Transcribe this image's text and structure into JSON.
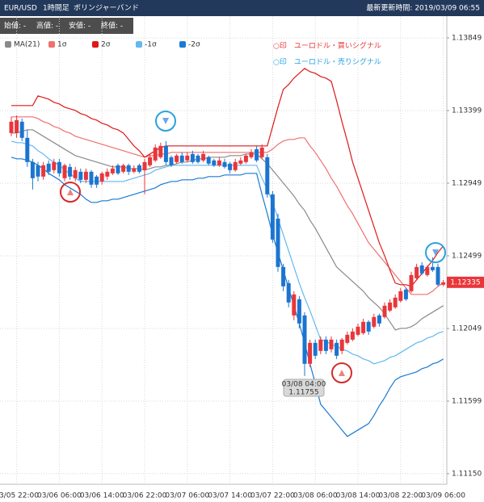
{
  "header": {
    "pair": "EUR/USD",
    "timeframe": "1時間足",
    "indicator": "ボリンジャーバンド",
    "updated": "最新更新時間: 2019/03/09 06:55"
  },
  "ohlc_labels": [
    "始値: -",
    "高値: -",
    "安値: -",
    "終値: -"
  ],
  "chart_data": {
    "type": "candlestick",
    "categories": [
      null,
      "03/05 22:00",
      null,
      null,
      null,
      null,
      null,
      null,
      null,
      "03/06 06:00",
      null,
      null,
      null,
      null,
      null,
      null,
      null,
      "03/06 14:00",
      null,
      null,
      null,
      null,
      null,
      null,
      null,
      "03/06 22:00",
      null,
      null,
      null,
      null,
      null,
      null,
      null,
      "03/07 06:00",
      null,
      null,
      null,
      null,
      null,
      null,
      null,
      "03/07 14:00",
      null,
      null,
      null,
      null,
      null,
      null,
      null,
      "03/07 22:00",
      null,
      null,
      null,
      null,
      null,
      null,
      null,
      "03/08 06:00",
      null,
      null,
      null,
      null,
      null,
      null,
      null,
      "03/08 14:00",
      null,
      null,
      null,
      null,
      null,
      null,
      null,
      "03/08 22:00",
      null,
      null,
      null,
      null,
      null,
      null,
      null,
      "03/09 06:00"
    ],
    "open": [
      1.1326,
      1.1326,
      1.1333,
      1.1323,
      1.1308,
      1.1306,
      1.1299,
      1.1307,
      1.1303,
      1.1308,
      1.1298,
      1.1305,
      1.1298,
      1.1302,
      1.1297,
      1.1302,
      1.1299,
      1.1296,
      1.1299,
      1.1301,
      1.1306,
      1.1302,
      1.1306,
      1.1302,
      1.1306,
      1.1303,
      1.1306,
      1.1309,
      1.1311,
      1.1318,
      1.1311,
      1.1308,
      1.1312,
      1.1309,
      1.1313,
      1.1312,
      1.1309,
      1.1311,
      1.1309,
      1.1306,
      1.1308,
      1.1307,
      1.1303,
      1.1307,
      1.1308,
      1.1311,
      1.1316,
      1.1311,
      1.1311,
      1.1288,
      1.1273,
      1.1243,
      1.1233,
      1.1213,
      1.1223,
      1.1213,
      1.1183,
      1.1196,
      1.1191,
      1.1198,
      1.1192,
      1.1196,
      1.1191,
      1.1196,
      1.1198,
      1.1201,
      1.1202,
      1.1209,
      1.1206,
      1.1213,
      1.1212,
      1.1216,
      1.1218,
      1.1222,
      1.1229,
      1.1228,
      1.1236,
      1.1244,
      1.1238,
      1.1243,
      1.1243,
      1.1232
    ],
    "high": [
      1.1336,
      1.1337,
      1.1335,
      1.1328,
      1.131,
      1.1308,
      1.1308,
      1.1309,
      1.131,
      1.131,
      1.1307,
      1.1307,
      1.1305,
      1.1304,
      1.1304,
      1.1303,
      1.13,
      1.1302,
      1.1304,
      1.1306,
      1.1307,
      1.1307,
      1.1307,
      1.1306,
      1.1307,
      1.131,
      1.1313,
      1.1319,
      1.132,
      1.1321,
      1.1312,
      1.1313,
      1.1314,
      1.1314,
      1.1315,
      1.1313,
      1.1315,
      1.1312,
      1.131,
      1.1311,
      1.131,
      1.1308,
      1.131,
      1.1311,
      1.1313,
      1.1316,
      1.1318,
      1.1319,
      1.1313,
      1.129,
      1.1276,
      1.1245,
      1.1235,
      1.1228,
      1.1225,
      1.1215,
      1.1198,
      1.1198,
      1.12,
      1.12,
      1.12,
      1.1198,
      1.1199,
      1.1203,
      1.1205,
      1.1208,
      1.1211,
      1.121,
      1.1214,
      1.1214,
      1.1221,
      1.1223,
      1.1226,
      1.123,
      1.123,
      1.124,
      1.1245,
      1.1246,
      1.1244,
      1.1249,
      1.1245,
      1.1235
    ],
    "low": [
      1.1324,
      1.1323,
      1.1321,
      1.1305,
      1.1291,
      1.1296,
      1.1297,
      1.13,
      1.1301,
      1.1299,
      1.1296,
      1.1297,
      1.1296,
      1.1295,
      1.1295,
      1.1292,
      1.1292,
      1.1294,
      1.1297,
      1.13,
      1.13,
      1.1301,
      1.13,
      1.1301,
      1.1301,
      1.1288,
      1.1305,
      1.1308,
      1.131,
      1.1306,
      1.1305,
      1.1307,
      1.1307,
      1.1308,
      1.1307,
      1.1307,
      1.1308,
      1.1306,
      1.1305,
      1.1305,
      1.1304,
      1.1301,
      1.1302,
      1.1306,
      1.1307,
      1.131,
      1.1308,
      1.131,
      1.1286,
      1.1258,
      1.124,
      1.1228,
      1.1218,
      1.121,
      1.1205,
      1.11755,
      1.1181,
      1.1186,
      1.1189,
      1.1189,
      1.119,
      1.1186,
      1.1189,
      1.1195,
      1.1197,
      1.12,
      1.1201,
      1.1201,
      1.1205,
      1.1206,
      1.1211,
      1.1215,
      1.1217,
      1.1221,
      1.1222,
      1.1227,
      1.1235,
      1.1238,
      1.1237,
      1.124,
      1.1231,
      1.1231
    ],
    "close": [
      1.1333,
      1.1334,
      1.1323,
      1.1308,
      1.1298,
      1.1299,
      1.1306,
      1.1302,
      1.1308,
      1.1301,
      1.1306,
      1.1299,
      1.1303,
      1.1297,
      1.1302,
      1.1294,
      1.1294,
      1.1301,
      1.1302,
      1.1304,
      1.1301,
      1.1306,
      1.1302,
      1.1304,
      1.1302,
      1.1308,
      1.1311,
      1.1317,
      1.1318,
      1.1308,
      1.1306,
      1.1312,
      1.1308,
      1.1312,
      1.1308,
      1.1308,
      1.1313,
      1.1307,
      1.1306,
      1.1309,
      1.1305,
      1.1303,
      1.1308,
      1.1309,
      1.1312,
      1.1314,
      1.1309,
      1.1317,
      1.1288,
      1.126,
      1.1243,
      1.1231,
      1.1221,
      1.1226,
      1.1208,
      1.1183,
      1.1196,
      1.1188,
      1.1198,
      1.1191,
      1.1198,
      1.1188,
      1.1198,
      1.1201,
      1.1203,
      1.1206,
      1.1209,
      1.1203,
      1.1212,
      1.1208,
      1.1219,
      1.1221,
      1.1224,
      1.1228,
      1.1223,
      1.1238,
      1.1243,
      1.1239,
      1.1243,
      1.1241,
      1.1232,
      1.12335
    ],
    "up_color": "#e8363a",
    "down_color": "#1b75d0",
    "series": [
      {
        "name": "MA(21)",
        "color": "#8a8a8a",
        "values": [
          1.1326,
          1.1326,
          1.1327,
          1.1328,
          1.1328,
          1.1326,
          1.1324,
          1.1322,
          1.132,
          1.1318,
          1.1316,
          1.1314,
          1.1312,
          1.1311,
          1.131,
          1.1309,
          1.1308,
          1.1307,
          1.1306,
          1.1305,
          1.1305,
          1.1305,
          1.1304,
          1.1304,
          1.1304,
          1.1303,
          1.1304,
          1.1305,
          1.1305,
          1.1306,
          1.1306,
          1.1307,
          1.1308,
          1.1308,
          1.1309,
          1.131,
          1.131,
          1.1311,
          1.1311,
          1.1311,
          1.1311,
          1.1312,
          1.1312,
          1.1312,
          1.1313,
          1.1313,
          1.1313,
          1.131,
          1.1307,
          1.1303,
          1.1299,
          1.1295,
          1.1291,
          1.1287,
          1.1282,
          1.1278,
          1.1272,
          1.1267,
          1.1261,
          1.1255,
          1.1249,
          1.1243,
          1.124,
          1.1237,
          1.1234,
          1.1231,
          1.1228,
          1.1224,
          1.1221,
          1.1218,
          1.1214,
          1.1209,
          1.1204,
          1.1205,
          1.1205,
          1.1206,
          1.1208,
          1.1211,
          1.1213,
          1.1215,
          1.1217,
          1.1219
        ]
      },
      {
        "name": "1σ",
        "color": "#f07070",
        "values": [
          1.1336,
          1.1336,
          1.1336,
          1.1336,
          1.1336,
          1.1335,
          1.1333,
          1.1332,
          1.133,
          1.1329,
          1.1327,
          1.1326,
          1.1324,
          1.1323,
          1.1322,
          1.1321,
          1.132,
          1.1319,
          1.1318,
          1.1317,
          1.1316,
          1.1315,
          1.1314,
          1.1313,
          1.1312,
          1.1311,
          1.1312,
          1.1312,
          1.1313,
          1.1313,
          1.1314,
          1.1314,
          1.1314,
          1.1314,
          1.1314,
          1.1314,
          1.1314,
          1.1314,
          1.1314,
          1.1314,
          1.1314,
          1.1314,
          1.1314,
          1.1314,
          1.1314,
          1.1314,
          1.1314,
          1.1314,
          1.1314,
          1.1316,
          1.1319,
          1.1321,
          1.1322,
          1.1322,
          1.1323,
          1.1323,
          1.1318,
          1.1314,
          1.1309,
          1.1304,
          1.1298,
          1.1293,
          1.1287,
          1.1281,
          1.1276,
          1.127,
          1.1264,
          1.1258,
          1.1254,
          1.125,
          1.1246,
          1.1242,
          1.1238,
          1.1234,
          1.123,
          1.1226,
          1.1226,
          1.1226,
          1.1226,
          1.1228,
          1.1231,
          1.1233
        ]
      },
      {
        "name": "2σ",
        "color": "#e01818",
        "values": [
          1.1343,
          1.1343,
          1.1343,
          1.1343,
          1.1343,
          1.1349,
          1.1348,
          1.1347,
          1.1345,
          1.1344,
          1.1342,
          1.1341,
          1.134,
          1.1338,
          1.1337,
          1.1335,
          1.1334,
          1.1332,
          1.1331,
          1.1329,
          1.1328,
          1.1326,
          1.1322,
          1.1318,
          1.1315,
          1.1311,
          1.1313,
          1.1315,
          1.1317,
          1.1318,
          1.1318,
          1.1318,
          1.1318,
          1.1318,
          1.1318,
          1.1318,
          1.1318,
          1.1318,
          1.1318,
          1.1318,
          1.1318,
          1.1318,
          1.1318,
          1.1318,
          1.1318,
          1.1318,
          1.1318,
          1.1318,
          1.1318,
          1.133,
          1.1342,
          1.1353,
          1.1356,
          1.136,
          1.1363,
          1.1366,
          1.1364,
          1.1363,
          1.1361,
          1.136,
          1.1358,
          1.1346,
          1.1333,
          1.1321,
          1.1308,
          1.1298,
          1.1288,
          1.1278,
          1.1268,
          1.1258,
          1.125,
          1.1241,
          1.1233,
          1.1232,
          1.1232,
          1.1231,
          1.1235,
          1.1239,
          1.1243,
          1.1247,
          1.1252,
          1.1256
        ]
      },
      {
        "name": "-1σ",
        "color": "#62b9ef",
        "values": [
          1.1321,
          1.132,
          1.132,
          1.1319,
          1.1318,
          1.1315,
          1.1313,
          1.131,
          1.1308,
          1.1306,
          1.1303,
          1.1301,
          1.1298,
          1.1296,
          1.1296,
          1.1296,
          1.1296,
          1.1296,
          1.1296,
          1.1296,
          1.1296,
          1.1296,
          1.1297,
          1.1298,
          1.1299,
          1.13,
          1.1301,
          1.1303,
          1.1304,
          1.1305,
          1.1306,
          1.1306,
          1.1306,
          1.1306,
          1.1306,
          1.1306,
          1.1306,
          1.1306,
          1.1306,
          1.1306,
          1.1306,
          1.1306,
          1.1306,
          1.1306,
          1.1306,
          1.1306,
          1.1306,
          1.1298,
          1.1291,
          1.1283,
          1.1273,
          1.1263,
          1.1253,
          1.1243,
          1.1233,
          1.1224,
          1.1216,
          1.1207,
          1.1198,
          1.1197,
          1.1195,
          1.1194,
          1.1192,
          1.1191,
          1.1189,
          1.1188,
          1.1186,
          1.1185,
          1.1183,
          1.1184,
          1.1185,
          1.1187,
          1.1188,
          1.119,
          1.1192,
          1.1194,
          1.1196,
          1.1197,
          1.1199,
          1.12,
          1.1202,
          1.1203
        ]
      },
      {
        "name": "-2σ",
        "color": "#1a7ad2",
        "values": [
          1.1311,
          1.131,
          1.131,
          1.1309,
          1.1308,
          1.1306,
          1.1304,
          1.1301,
          1.1299,
          1.1297,
          1.1294,
          1.1292,
          1.129,
          1.1288,
          1.1285,
          1.1283,
          1.1283,
          1.1284,
          1.1284,
          1.1285,
          1.1285,
          1.1286,
          1.1287,
          1.1288,
          1.1289,
          1.129,
          1.1291,
          1.1292,
          1.1294,
          1.1295,
          1.1296,
          1.1296,
          1.1297,
          1.1297,
          1.1297,
          1.1298,
          1.1298,
          1.1299,
          1.1299,
          1.1299,
          1.13,
          1.13,
          1.13,
          1.13,
          1.1301,
          1.1301,
          1.1301,
          1.1288,
          1.1276,
          1.1263,
          1.1252,
          1.1241,
          1.123,
          1.1219,
          1.1208,
          1.1196,
          1.1183,
          1.1171,
          1.1158,
          1.1154,
          1.115,
          1.1146,
          1.1142,
          1.1138,
          1.114,
          1.1142,
          1.1144,
          1.1146,
          1.1151,
          1.1157,
          1.1162,
          1.1168,
          1.1173,
          1.1175,
          1.1176,
          1.1177,
          1.1178,
          1.118,
          1.1181,
          1.1183,
          1.1184,
          1.1186
        ]
      }
    ],
    "ylim": [
      1.11084,
      1.13984
    ],
    "yticks": [
      1.13849,
      1.13399,
      1.12949,
      1.12499,
      1.12049,
      1.11599,
      {
        "value": 1.1115,
        "label": "1.11150"
      }
    ],
    "grid": true,
    "annotations": [
      {
        "text": "○印　ユーロドル・買いシグナル",
        "color": "#e8363a"
      },
      {
        "text": "○印　ユーロドル・売りシグナル",
        "color": "#2aa3e0"
      }
    ],
    "tooltip_time": "03/08 04:00"
  }
}
